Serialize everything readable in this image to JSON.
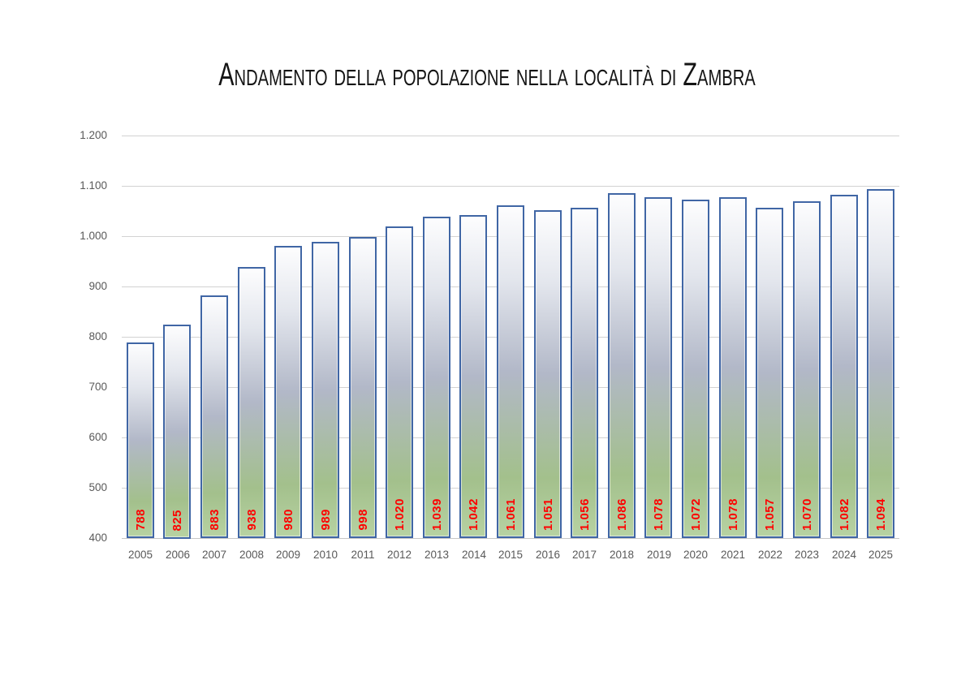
{
  "chart_data": {
    "type": "bar",
    "title": "Andamento della popolazione nella località di Zambra",
    "categories": [
      "2005",
      "2006",
      "2007",
      "2008",
      "2009",
      "2010",
      "2011",
      "2012",
      "2013",
      "2014",
      "2015",
      "2016",
      "2017",
      "2018",
      "2019",
      "2020",
      "2021",
      "2022",
      "2023",
      "2024",
      "2025"
    ],
    "values": [
      788,
      825,
      883,
      938,
      980,
      989,
      998,
      1020,
      1039,
      1042,
      1061,
      1051,
      1056,
      1086,
      1078,
      1072,
      1078,
      1057,
      1070,
      1082,
      1094
    ],
    "value_labels": [
      "788",
      "825",
      "883",
      "938",
      "980",
      "989",
      "998",
      "1.020",
      "1.039",
      "1.042",
      "1.061",
      "1.051",
      "1.056",
      "1.086",
      "1.078",
      "1.072",
      "1.078",
      "1.057",
      "1.070",
      "1.082",
      "1.094"
    ],
    "y_ticks": [
      {
        "value": 1200,
        "label": "1.200"
      },
      {
        "value": 1100,
        "label": "1.100"
      },
      {
        "value": 1000,
        "label": "1.000"
      },
      {
        "value": 900,
        "label": "900"
      },
      {
        "value": 800,
        "label": "800"
      },
      {
        "value": 700,
        "label": "700"
      },
      {
        "value": 600,
        "label": "600"
      },
      {
        "value": 500,
        "label": "500"
      },
      {
        "value": 400,
        "label": "400"
      }
    ],
    "ylim": [
      400,
      1200
    ],
    "xlabel": "",
    "ylabel": "",
    "grid": true,
    "legend": false,
    "value_label_orientation": "rotated-bottom-to-top"
  },
  "colors": {
    "background": "#ffffff",
    "title": "#141414",
    "axis_label": "#595959",
    "gridline": "#d2d2d2",
    "baseline": "#c6c6c6",
    "bar_border": "#4066a5",
    "bar_gradient_top": "#fdfdfe",
    "bar_gradient_upper": "#e3e6ed",
    "bar_gradient_mid": "#b2b8c8",
    "bar_gradient_green": "#a3c08c",
    "bar_gradient_bottom": "#b7d2a2",
    "value_label": "#fe0000"
  }
}
